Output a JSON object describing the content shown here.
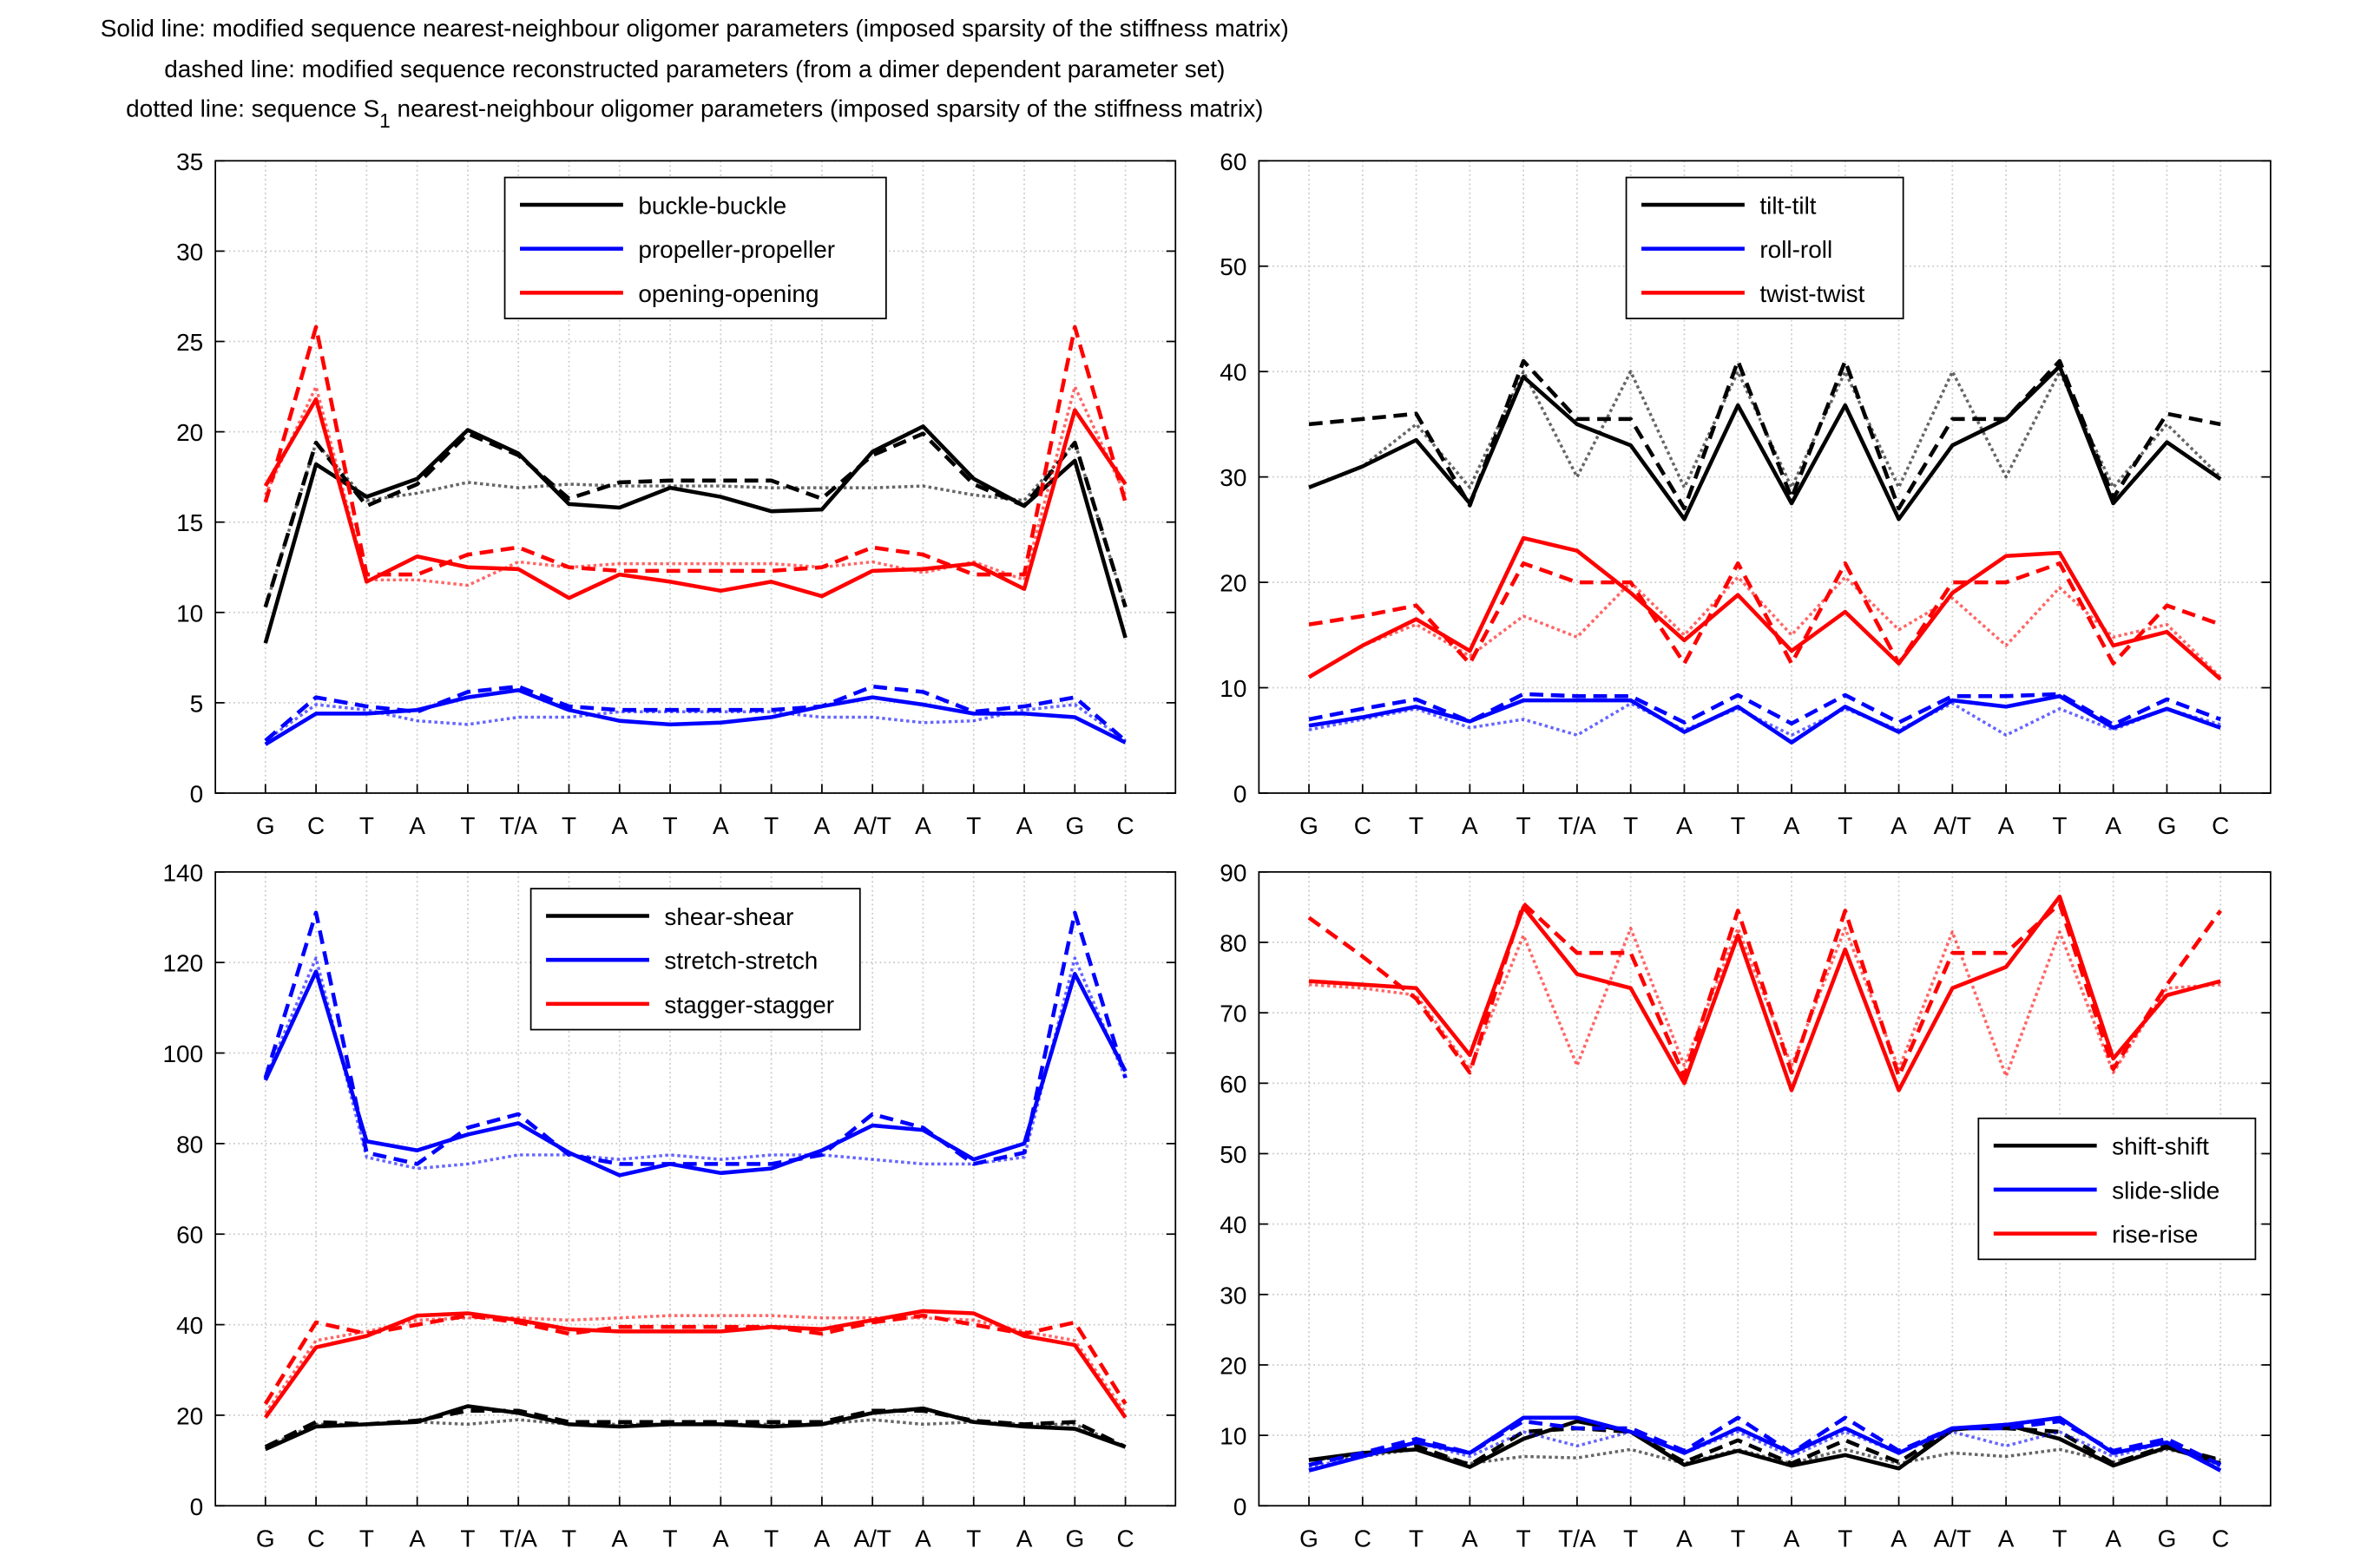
{
  "title": {
    "line1": "Solid line: modified sequence nearest-neighbour oligomer parameters (imposed sparsity of the stiffness matrix)",
    "line2": "dashed line: modified sequence reconstructed parameters (from a dimer dependent parameter set)",
    "line3": {
      "before": "dotted line: sequence S",
      "subscript": "1",
      "after": " nearest-neighbour oligomer parameters (imposed sparsity of the stiffness matrix)"
    }
  },
  "chart_data": [
    {
      "type": "line",
      "categories": [
        "G",
        "C",
        "T",
        "A",
        "T",
        "T/A",
        "T",
        "A",
        "T",
        "A",
        "T",
        "A",
        "A/T",
        "A",
        "T",
        "A",
        "G",
        "C"
      ],
      "ylim": [
        0,
        35
      ],
      "yticks": [
        0,
        5,
        10,
        15,
        20,
        25,
        30,
        35
      ],
      "grid": true,
      "legend": "north",
      "series": [
        {
          "name": "buckle-buckle",
          "color": "#000000",
          "values": [
            8.3,
            18.2,
            16.4,
            17.4,
            20.1,
            18.8,
            16.0,
            15.8,
            16.9,
            16.4,
            15.6,
            15.7,
            18.9,
            20.3,
            17.4,
            15.9,
            18.4,
            8.6
          ],
          "dashed_values": [
            10.3,
            19.4,
            15.9,
            17.1,
            19.9,
            18.7,
            16.3,
            17.2,
            17.3,
            17.3,
            17.3,
            16.3,
            18.7,
            19.9,
            17.1,
            15.9,
            19.4,
            10.3
          ],
          "dotted_values": [
            10.3,
            19.4,
            16.2,
            16.6,
            17.2,
            16.9,
            17.1,
            17.0,
            17.0,
            17.0,
            16.9,
            16.9,
            16.9,
            17.0,
            16.5,
            16.2,
            19.4,
            10.3
          ]
        },
        {
          "name": "propeller-propeller",
          "color": "#0000ff",
          "values": [
            2.7,
            4.4,
            4.4,
            4.6,
            5.3,
            5.7,
            4.6,
            4.0,
            3.8,
            3.9,
            4.2,
            4.8,
            5.3,
            4.9,
            4.4,
            4.4,
            4.2,
            2.8
          ],
          "dashed_values": [
            2.9,
            5.3,
            4.8,
            4.5,
            5.6,
            5.9,
            4.8,
            4.6,
            4.6,
            4.6,
            4.6,
            4.8,
            5.9,
            5.6,
            4.5,
            4.8,
            5.3,
            2.9
          ],
          "dotted_values": [
            2.9,
            4.9,
            4.6,
            4.0,
            3.8,
            4.2,
            4.2,
            4.5,
            4.5,
            4.5,
            4.5,
            4.2,
            4.2,
            3.9,
            4.0,
            4.6,
            4.9,
            2.9
          ]
        },
        {
          "name": "opening-opening",
          "color": "#ff0000",
          "values": [
            17.0,
            21.8,
            11.7,
            13.1,
            12.5,
            12.4,
            10.8,
            12.1,
            11.7,
            11.2,
            11.7,
            10.9,
            12.3,
            12.4,
            12.7,
            11.3,
            21.2,
            17.1
          ],
          "dashed_values": [
            16.1,
            25.8,
            12.1,
            12.1,
            13.2,
            13.6,
            12.5,
            12.3,
            12.3,
            12.3,
            12.3,
            12.5,
            13.6,
            13.2,
            12.1,
            12.1,
            25.8,
            16.1
          ],
          "dotted_values": [
            16.5,
            22.5,
            11.8,
            11.8,
            11.5,
            12.8,
            12.5,
            12.7,
            12.7,
            12.7,
            12.7,
            12.5,
            12.8,
            12.2,
            12.8,
            11.8,
            22.5,
            16.5
          ]
        }
      ]
    },
    {
      "type": "line",
      "categories": [
        "G",
        "C",
        "T",
        "A",
        "T",
        "T/A",
        "T",
        "A",
        "T",
        "A",
        "T",
        "A",
        "A/T",
        "A",
        "T",
        "A",
        "G",
        "C"
      ],
      "ylim": [
        0,
        60
      ],
      "yticks": [
        0,
        10,
        20,
        30,
        40,
        50,
        60
      ],
      "grid": true,
      "legend": "north",
      "series": [
        {
          "name": "tilt-tilt",
          "color": "#000000",
          "values": [
            29.0,
            31.0,
            33.5,
            27.5,
            39.5,
            35.0,
            33.0,
            26.0,
            36.8,
            27.5,
            36.8,
            26.0,
            33.0,
            35.5,
            40.5,
            27.5,
            33.3,
            29.8
          ],
          "dashed_values": [
            35.0,
            35.5,
            36.0,
            27.3,
            41.0,
            35.5,
            35.5,
            27.0,
            41.0,
            28.0,
            41.0,
            27.0,
            35.5,
            35.5,
            41.0,
            28.0,
            36.0,
            35.0
          ],
          "dotted_values": [
            29.0,
            31.0,
            35.0,
            29.0,
            40.0,
            30.0,
            40.0,
            29.0,
            40.0,
            29.0,
            40.0,
            29.0,
            40.0,
            30.0,
            40.0,
            29.0,
            35.0,
            30.0
          ]
        },
        {
          "name": "roll-roll",
          "color": "#0000ff",
          "values": [
            6.4,
            7.2,
            8.2,
            6.8,
            8.8,
            8.8,
            8.8,
            5.8,
            8.2,
            4.8,
            8.2,
            5.8,
            8.8,
            8.2,
            9.2,
            6.2,
            8.0,
            6.2
          ],
          "dashed_values": [
            7.0,
            8.0,
            8.9,
            6.8,
            9.4,
            9.2,
            9.2,
            6.7,
            9.3,
            6.6,
            9.3,
            6.7,
            9.2,
            9.2,
            9.4,
            6.5,
            8.9,
            7.0
          ],
          "dotted_values": [
            6.0,
            7.0,
            8.0,
            6.2,
            7.0,
            5.5,
            8.5,
            6.0,
            8.0,
            5.5,
            8.0,
            6.0,
            8.5,
            5.5,
            8.0,
            6.0,
            8.0,
            6.5
          ]
        },
        {
          "name": "twist-twist",
          "color": "#ff0000",
          "values": [
            11.0,
            14.0,
            16.5,
            13.5,
            24.2,
            23.0,
            19.0,
            14.5,
            18.8,
            13.5,
            17.2,
            12.3,
            19.0,
            22.5,
            22.8,
            14.0,
            15.3,
            10.8
          ],
          "dashed_values": [
            16.0,
            16.8,
            17.8,
            12.3,
            21.8,
            20.0,
            20.0,
            12.3,
            21.8,
            12.3,
            21.8,
            12.3,
            20.0,
            20.0,
            21.8,
            12.3,
            17.8,
            16.0
          ],
          "dotted_values": [
            11.0,
            14.0,
            16.0,
            13.0,
            16.8,
            14.8,
            20.0,
            15.0,
            20.5,
            15.0,
            20.5,
            15.5,
            18.5,
            14.0,
            19.5,
            14.8,
            16.0,
            11.0
          ]
        }
      ]
    },
    {
      "type": "line",
      "categories": [
        "G",
        "C",
        "T",
        "A",
        "T",
        "T/A",
        "T",
        "A",
        "T",
        "A",
        "T",
        "A",
        "A/T",
        "A",
        "T",
        "A",
        "G",
        "C"
      ],
      "ylim": [
        0,
        140
      ],
      "yticks": [
        0,
        20,
        40,
        60,
        80,
        100,
        120,
        140
      ],
      "grid": true,
      "legend": "north",
      "series": [
        {
          "name": "shear-shear",
          "color": "#000000",
          "values": [
            12.5,
            17.5,
            18.0,
            18.5,
            22.0,
            20.5,
            18.0,
            17.5,
            18.0,
            18.0,
            17.5,
            18.0,
            20.5,
            21.5,
            18.5,
            17.5,
            17.0,
            13.0
          ],
          "dashed_values": [
            13.0,
            18.5,
            18.0,
            18.8,
            21.0,
            21.0,
            18.5,
            18.5,
            18.5,
            18.5,
            18.5,
            18.5,
            21.0,
            21.0,
            18.8,
            18.0,
            18.5,
            13.0
          ],
          "dotted_values": [
            13.0,
            18.0,
            18.0,
            18.5,
            18.0,
            19.0,
            18.0,
            18.0,
            18.0,
            18.0,
            18.0,
            18.0,
            19.0,
            18.0,
            18.5,
            18.0,
            18.0,
            13.0
          ]
        },
        {
          "name": "stretch-stretch",
          "color": "#0000ff",
          "values": [
            94,
            118,
            80.5,
            78.5,
            82,
            84.5,
            78,
            73,
            75.5,
            73.5,
            74.5,
            78.5,
            84,
            83,
            76.5,
            80,
            117.5,
            96
          ],
          "dashed_values": [
            94.5,
            131,
            78,
            75.5,
            83.5,
            86.5,
            77.5,
            75.5,
            75.5,
            75.5,
            75.5,
            77.5,
            86.5,
            83.5,
            75.5,
            78,
            131,
            94.5
          ],
          "dotted_values": [
            94.5,
            121,
            77,
            74.5,
            75.5,
            77.5,
            77.5,
            76.5,
            77.5,
            76.5,
            77.5,
            77.5,
            76.5,
            75.5,
            75.5,
            77,
            121,
            94.5
          ]
        },
        {
          "name": "stagger-stagger",
          "color": "#ff0000",
          "values": [
            19.5,
            35.0,
            37.5,
            42.0,
            42.5,
            41.0,
            39.0,
            38.5,
            38.5,
            38.5,
            39.5,
            39.0,
            41.0,
            43.0,
            42.5,
            37.5,
            35.5,
            19.5
          ],
          "dashed_values": [
            22.5,
            40.5,
            38.0,
            40.0,
            42.0,
            40.5,
            38.0,
            39.5,
            39.5,
            39.5,
            39.5,
            38.0,
            40.5,
            42.0,
            40.0,
            38.0,
            40.5,
            22.5
          ],
          "dotted_values": [
            20.5,
            36.5,
            38.5,
            41.0,
            41.5,
            41.5,
            41.0,
            41.5,
            42.0,
            42.0,
            42.0,
            41.5,
            41.5,
            41.5,
            41.0,
            38.5,
            36.5,
            20.5
          ]
        }
      ]
    },
    {
      "type": "line",
      "categories": [
        "G",
        "C",
        "T",
        "A",
        "T",
        "T/A",
        "T",
        "A",
        "T",
        "A",
        "T",
        "A",
        "A/T",
        "A",
        "T",
        "A",
        "G",
        "C"
      ],
      "ylim": [
        0,
        90
      ],
      "yticks": [
        0,
        10,
        20,
        30,
        40,
        50,
        60,
        70,
        80,
        90
      ],
      "grid": true,
      "legend": "east",
      "series": [
        {
          "name": "shift-shift",
          "color": "#000000",
          "values": [
            6.5,
            7.5,
            8.0,
            5.5,
            9.5,
            12.0,
            10.5,
            5.8,
            7.8,
            5.7,
            7.2,
            5.3,
            10.8,
            11.5,
            9.5,
            5.7,
            8.3,
            6.0
          ],
          "dashed_values": [
            6.5,
            7.2,
            8.5,
            5.8,
            10.5,
            11.0,
            10.5,
            6.2,
            9.3,
            6.0,
            9.3,
            6.2,
            11.0,
            11.0,
            10.5,
            6.0,
            8.5,
            6.5
          ],
          "dotted_values": [
            6.5,
            7.0,
            8.0,
            6.0,
            7.0,
            6.8,
            8.0,
            6.0,
            8.0,
            6.0,
            8.0,
            6.0,
            7.5,
            7.0,
            8.0,
            6.2,
            8.0,
            6.5
          ]
        },
        {
          "name": "slide-slide",
          "color": "#0000ff",
          "values": [
            5.0,
            7.0,
            9.0,
            7.5,
            12.5,
            12.5,
            10.5,
            7.5,
            11.0,
            7.5,
            11.0,
            7.5,
            11.0,
            11.5,
            12.5,
            7.5,
            9.0,
            5.0
          ],
          "dashed_values": [
            5.8,
            7.5,
            9.5,
            7.5,
            12.0,
            11.0,
            11.0,
            7.8,
            12.5,
            7.5,
            12.5,
            7.8,
            11.0,
            11.0,
            12.0,
            7.8,
            9.5,
            5.8
          ],
          "dotted_values": [
            5.5,
            7.0,
            9.0,
            7.0,
            10.5,
            8.5,
            10.5,
            7.5,
            10.5,
            7.0,
            10.5,
            7.5,
            10.5,
            8.5,
            10.5,
            7.0,
            9.0,
            5.5
          ]
        },
        {
          "name": "rise-rise",
          "color": "#ff0000",
          "values": [
            74.5,
            74.0,
            73.5,
            64.0,
            85.0,
            75.5,
            73.5,
            60.0,
            81.0,
            59.0,
            79.0,
            59.0,
            73.5,
            76.5,
            86.5,
            63.5,
            72.5,
            74.5
          ],
          "dashed_values": [
            83.5,
            78.0,
            72.0,
            61.5,
            85.5,
            78.5,
            78.5,
            61.0,
            84.5,
            61.5,
            84.5,
            61.0,
            78.5,
            78.5,
            85.5,
            62.0,
            74.0,
            84.5
          ],
          "dotted_values": [
            74.0,
            73.5,
            72.5,
            62.0,
            81.0,
            62.5,
            82.0,
            62.5,
            82.0,
            62.5,
            82.0,
            62.0,
            81.5,
            61.0,
            81.5,
            61.5,
            73.5,
            74.0
          ]
        }
      ]
    }
  ]
}
